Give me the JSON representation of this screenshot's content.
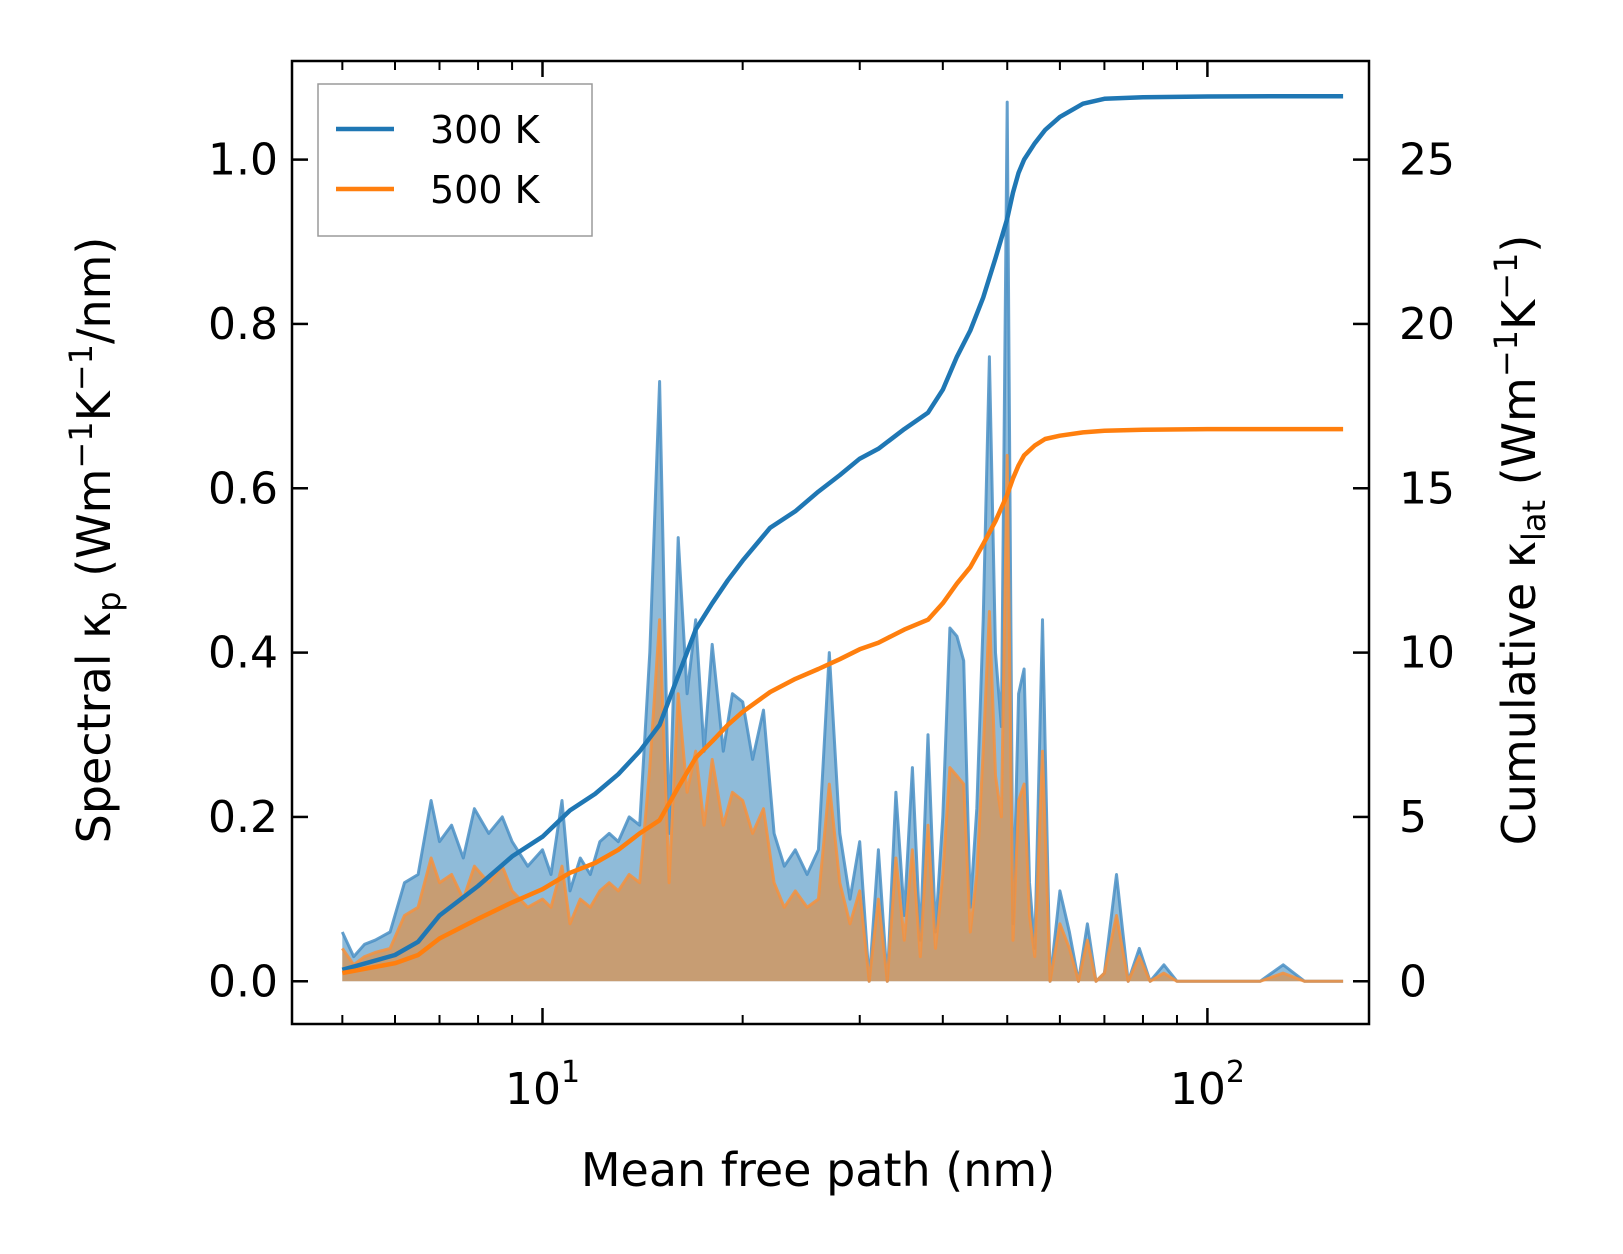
{
  "chart_data": {
    "type": "line",
    "xscale": "log",
    "xlabel": "Mean free path (nm)",
    "ylabel_left": "Spectral κp (Wm−1K−1/nm)",
    "ylabel_left_parts": {
      "main": "Spectral κ",
      "sub": "p",
      "unit_a": " (Wm",
      "sup1": "−1",
      "unit_b": "K",
      "sup2": "−1",
      "unit_c": "/nm)"
    },
    "ylabel_right": "Cumulative κlat (Wm−1K−1)",
    "ylabel_right_parts": {
      "main": "Cumulative κ",
      "sub": "lat",
      "unit_a": " (Wm",
      "sup1": "−1",
      "unit_b": "K",
      "sup2": "−1",
      "unit_c": ")"
    },
    "xlim": [
      4.2,
      175
    ],
    "ylim_left": [
      -0.052,
      1.12
    ],
    "ylim_right": [
      -1.3,
      28.0
    ],
    "x_ticks": [
      {
        "value": 10,
        "base": "10",
        "exp": "1"
      },
      {
        "value": 100,
        "base": "10",
        "exp": "2"
      }
    ],
    "y_ticks_left": [
      "0.0",
      "0.2",
      "0.4",
      "0.6",
      "0.8",
      "1.0"
    ],
    "y_ticks_right": [
      "0",
      "5",
      "10",
      "15",
      "20",
      "25"
    ],
    "colors": {
      "300 K": "#1f77b4",
      "500 K": "#ff7f0e"
    },
    "legend": {
      "position": "top-left",
      "entries": [
        "300 K",
        "500 K"
      ]
    },
    "spectral_series": [
      {
        "name": "300 K",
        "x": [
          5.0,
          5.2,
          5.4,
          5.6,
          5.9,
          6.2,
          6.5,
          6.8,
          7.0,
          7.3,
          7.6,
          7.9,
          8.3,
          8.7,
          9.0,
          9.5,
          10.0,
          10.3,
          10.7,
          11.0,
          11.4,
          11.8,
          12.2,
          12.6,
          13.0,
          13.5,
          14.0,
          14.5,
          15.0,
          15.5,
          16.0,
          16.5,
          17.0,
          17.5,
          18.0,
          18.7,
          19.3,
          20.0,
          20.7,
          21.5,
          22.3,
          23.1,
          24.0,
          25.0,
          26.0,
          27.0,
          28.0,
          29.0,
          30.0,
          31.0,
          32.0,
          33.0,
          34.0,
          35.0,
          36.0,
          37.0,
          38.0,
          39.0,
          40.0,
          41.0,
          42.0,
          43.0,
          44.0,
          45.0,
          46.0,
          47.0,
          48.0,
          49.0,
          50.0,
          51.0,
          52.0,
          53.0,
          54.0,
          55.0,
          56.5,
          58.0,
          60.0,
          62.0,
          64.0,
          66.0,
          68.0,
          70.0,
          73.0,
          76.0,
          79.0,
          82.0,
          86.0,
          90.0,
          95.0,
          100.0,
          110.0,
          120.0,
          130.0,
          140.0,
          150.0,
          160.0
        ],
        "values": [
          0.06,
          0.03,
          0.045,
          0.05,
          0.06,
          0.12,
          0.13,
          0.22,
          0.17,
          0.19,
          0.15,
          0.21,
          0.18,
          0.2,
          0.17,
          0.14,
          0.16,
          0.13,
          0.22,
          0.11,
          0.15,
          0.13,
          0.17,
          0.18,
          0.17,
          0.2,
          0.19,
          0.4,
          0.73,
          0.18,
          0.54,
          0.35,
          0.44,
          0.28,
          0.41,
          0.28,
          0.35,
          0.34,
          0.27,
          0.33,
          0.18,
          0.14,
          0.16,
          0.13,
          0.16,
          0.4,
          0.18,
          0.1,
          0.17,
          0.0,
          0.16,
          0.0,
          0.23,
          0.08,
          0.26,
          0.05,
          0.3,
          0.06,
          0.2,
          0.43,
          0.42,
          0.39,
          0.09,
          0.21,
          0.44,
          0.76,
          0.4,
          0.31,
          1.07,
          0.07,
          0.35,
          0.38,
          0.12,
          0.04,
          0.44,
          0.0,
          0.11,
          0.06,
          0.0,
          0.07,
          0.0,
          0.01,
          0.13,
          0.0,
          0.04,
          0.0,
          0.02,
          0.0,
          0.0,
          0.0,
          0.0,
          0.0,
          0.02,
          0.0,
          0.0,
          0.0
        ]
      },
      {
        "name": "500 K",
        "x": [
          5.0,
          5.2,
          5.4,
          5.6,
          5.9,
          6.2,
          6.5,
          6.8,
          7.0,
          7.3,
          7.6,
          7.9,
          8.3,
          8.7,
          9.0,
          9.5,
          10.0,
          10.3,
          10.7,
          11.0,
          11.4,
          11.8,
          12.2,
          12.6,
          13.0,
          13.5,
          14.0,
          14.5,
          15.0,
          15.5,
          16.0,
          16.5,
          17.0,
          17.5,
          18.0,
          18.7,
          19.3,
          20.0,
          20.7,
          21.5,
          22.3,
          23.1,
          24.0,
          25.0,
          26.0,
          27.0,
          28.0,
          29.0,
          30.0,
          31.0,
          32.0,
          33.0,
          34.0,
          35.0,
          36.0,
          37.0,
          38.0,
          39.0,
          40.0,
          41.0,
          42.0,
          43.0,
          44.0,
          45.0,
          46.0,
          47.0,
          48.0,
          49.0,
          50.0,
          51.0,
          52.0,
          53.0,
          54.0,
          55.0,
          56.5,
          58.0,
          60.0,
          62.0,
          64.0,
          66.0,
          68.0,
          70.0,
          73.0,
          76.0,
          79.0,
          82.0,
          86.0,
          90.0,
          95.0,
          100.0,
          110.0,
          120.0,
          130.0,
          140.0,
          150.0,
          160.0
        ],
        "values": [
          0.04,
          0.02,
          0.03,
          0.035,
          0.04,
          0.08,
          0.09,
          0.15,
          0.12,
          0.13,
          0.1,
          0.14,
          0.12,
          0.14,
          0.11,
          0.09,
          0.1,
          0.09,
          0.14,
          0.07,
          0.1,
          0.09,
          0.11,
          0.12,
          0.11,
          0.13,
          0.12,
          0.26,
          0.44,
          0.12,
          0.35,
          0.23,
          0.28,
          0.19,
          0.27,
          0.19,
          0.23,
          0.22,
          0.18,
          0.21,
          0.12,
          0.09,
          0.11,
          0.09,
          0.1,
          0.24,
          0.12,
          0.07,
          0.11,
          0.0,
          0.1,
          0.0,
          0.15,
          0.05,
          0.16,
          0.03,
          0.19,
          0.04,
          0.13,
          0.26,
          0.25,
          0.24,
          0.06,
          0.13,
          0.28,
          0.45,
          0.25,
          0.2,
          0.64,
          0.05,
          0.22,
          0.24,
          0.08,
          0.03,
          0.28,
          0.0,
          0.07,
          0.04,
          0.0,
          0.05,
          0.0,
          0.01,
          0.08,
          0.0,
          0.03,
          0.0,
          0.01,
          0.0,
          0.0,
          0.0,
          0.0,
          0.0,
          0.01,
          0.0,
          0.0,
          0.0
        ]
      }
    ],
    "cumulative_series": [
      {
        "name": "300 K",
        "x": [
          5.0,
          6.0,
          6.5,
          7.0,
          8.0,
          9.0,
          10.0,
          11.0,
          12.0,
          13.0,
          14.0,
          15.0,
          16.0,
          17.0,
          18.0,
          19.0,
          20.0,
          22.0,
          24.0,
          26.0,
          28.0,
          30.0,
          32.0,
          35.0,
          38.0,
          40.0,
          42.0,
          44.0,
          46.0,
          48.0,
          50.0,
          51.0,
          52.0,
          53.0,
          55.0,
          57.0,
          60.0,
          65.0,
          70.0,
          80.0,
          100.0,
          130.0,
          160.0
        ],
        "values": [
          0.35,
          0.8,
          1.2,
          2.0,
          2.9,
          3.8,
          4.4,
          5.2,
          5.7,
          6.3,
          7.0,
          7.8,
          9.3,
          10.7,
          11.5,
          12.2,
          12.8,
          13.8,
          14.3,
          14.9,
          15.4,
          15.9,
          16.2,
          16.8,
          17.3,
          18.0,
          19.0,
          19.8,
          20.8,
          22.0,
          23.2,
          24.0,
          24.6,
          25.0,
          25.5,
          25.9,
          26.3,
          26.7,
          26.85,
          26.9,
          26.92,
          26.93,
          26.93
        ]
      },
      {
        "name": "500 K",
        "x": [
          5.0,
          6.0,
          6.5,
          7.0,
          8.0,
          9.0,
          10.0,
          11.0,
          12.0,
          13.0,
          14.0,
          15.0,
          16.0,
          17.0,
          18.0,
          19.0,
          20.0,
          22.0,
          24.0,
          26.0,
          28.0,
          30.0,
          32.0,
          35.0,
          38.0,
          40.0,
          42.0,
          44.0,
          46.0,
          48.0,
          50.0,
          51.0,
          52.0,
          53.0,
          55.0,
          57.0,
          60.0,
          65.0,
          70.0,
          80.0,
          100.0,
          130.0,
          160.0
        ],
        "values": [
          0.25,
          0.55,
          0.8,
          1.3,
          1.9,
          2.4,
          2.8,
          3.3,
          3.6,
          4.0,
          4.5,
          4.9,
          5.9,
          6.8,
          7.3,
          7.8,
          8.2,
          8.8,
          9.2,
          9.5,
          9.8,
          10.1,
          10.3,
          10.7,
          11.0,
          11.5,
          12.1,
          12.6,
          13.3,
          14.0,
          14.8,
          15.3,
          15.7,
          16.0,
          16.3,
          16.5,
          16.6,
          16.7,
          16.75,
          16.78,
          16.8,
          16.8,
          16.8
        ]
      }
    ]
  }
}
